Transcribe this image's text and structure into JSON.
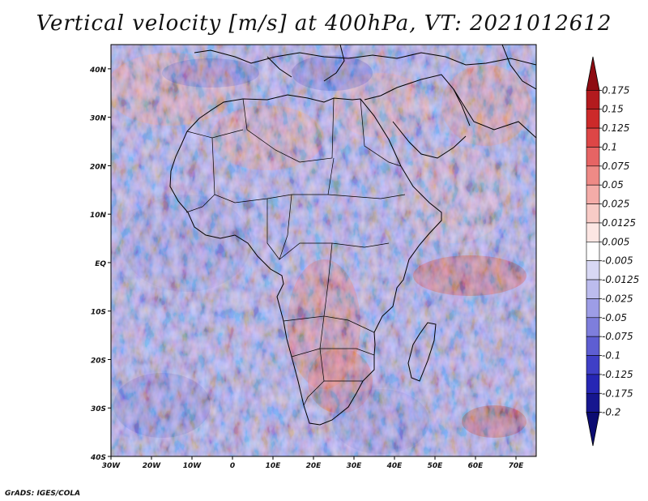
{
  "title": "Vertical velocity [m/s] at 400hPa, VT: 2021012612",
  "credit": "GrADS: IGES/COLA",
  "map": {
    "lat_ticks": [
      "40N",
      "30N",
      "20N",
      "10N",
      "EQ",
      "10S",
      "20S",
      "30S",
      "40S"
    ],
    "lon_ticks": [
      "30W",
      "20W",
      "10W",
      "0",
      "10E",
      "20E",
      "30E",
      "40E",
      "50E",
      "60E",
      "70E"
    ],
    "lat_range": [
      -40,
      45
    ],
    "lon_range": [
      -30,
      75
    ]
  },
  "colorbar": {
    "labels": [
      "0.175",
      "0.15",
      "0.125",
      "0.1",
      "0.075",
      "0.05",
      "0.025",
      "0.0125",
      "0.005",
      "-0.005",
      "-0.0125",
      "-0.025",
      "-0.05",
      "-0.075",
      "-0.1",
      "-0.125",
      "-0.175",
      "-0.2"
    ],
    "colors": [
      "#8e0c12",
      "#b31a1e",
      "#cc2a2a",
      "#dd4646",
      "#e66464",
      "#ee8a86",
      "#f4aca8",
      "#f8cbc6",
      "#fce6e3",
      "#ffffff",
      "#d8d8f4",
      "#bcbcee",
      "#9d9de6",
      "#7e7edc",
      "#5e5ed2",
      "#3f3fc6",
      "#2626b4",
      "#16168f",
      "#0c0c72"
    ]
  }
}
